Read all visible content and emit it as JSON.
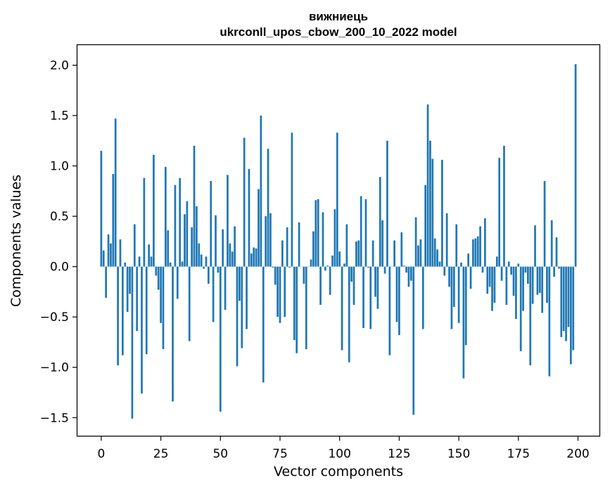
{
  "chart_data": {
    "type": "bar",
    "title": "вижниець",
    "subtitle": "ukrconll_upos_cbow_200_10_2022 model",
    "xlabel": "Vector components",
    "ylabel": "Components values",
    "xlim": [
      -10,
      209
    ],
    "ylim": [
      -1.68,
      2.2
    ],
    "xticks": [
      0,
      25,
      50,
      75,
      100,
      125,
      150,
      175,
      200
    ],
    "yticks": [
      -1.5,
      -1.0,
      -0.5,
      0.0,
      0.5,
      1.0,
      1.5,
      2.0
    ],
    "ytick_labels": [
      "−1.5",
      "−1.0",
      "−0.5",
      "0.0",
      "0.5",
      "1.0",
      "1.5",
      "2.0"
    ],
    "grid": false,
    "bar_color": "#1f77b4",
    "series": [
      {
        "values": [
          1.15,
          0.16,
          -0.31,
          0.32,
          0.23,
          0.92,
          1.47,
          -0.98,
          0.27,
          -0.88,
          0.04,
          -0.45,
          -0.27,
          -1.51,
          0.42,
          -0.64,
          0.1,
          -1.26,
          0.88,
          -0.87,
          0.22,
          0.1,
          1.11,
          -0.09,
          -0.23,
          -0.56,
          -0.82,
          0.99,
          0.36,
          0.04,
          -1.34,
          0.81,
          -0.32,
          0.88,
          0.05,
          0.52,
          0.65,
          -0.74,
          0.39,
          1.2,
          0.6,
          0.23,
          0.12,
          -0.02,
          0.1,
          -0.17,
          0.85,
          -0.55,
          0.51,
          -0.06,
          -1.44,
          0.37,
          -0.43,
          0.91,
          0.23,
          0.15,
          0.4,
          -0.99,
          -0.34,
          -0.81,
          1.28,
          -0.62,
          0.97,
          0.13,
          0.19,
          0.18,
          0.77,
          1.5,
          -1.15,
          0.5,
          1.17,
          0.53,
          -0.01,
          -0.18,
          -0.5,
          -0.56,
          0.26,
          -0.5,
          0.39,
          -0.01,
          1.33,
          -0.73,
          -0.86,
          0.44,
          0.0,
          -0.17,
          -0.82,
          0.0,
          0.07,
          0.35,
          0.66,
          0.67,
          -0.38,
          0.54,
          -0.04,
          0.01,
          -0.28,
          0.11,
          0.57,
          1.33,
          0.15,
          -0.83,
          0.03,
          0.42,
          -0.95,
          -0.15,
          -0.38,
          0.25,
          0.26,
          0.7,
          -0.61,
          0.67,
          -0.01,
          -0.62,
          0.26,
          -0.3,
          -0.42,
          0.89,
          0.46,
          -0.07,
          1.25,
          -0.88,
          0.0,
          0.26,
          -0.55,
          -0.68,
          0.34,
          0.01,
          -0.06,
          -0.2,
          -0.14,
          -1.47,
          0.49,
          0.21,
          0.27,
          -0.62,
          0.81,
          1.61,
          1.25,
          1.07,
          0.28,
          0.17,
          0.05,
          1.06,
          -0.09,
          0.53,
          -0.2,
          -0.62,
          -0.4,
          0.42,
          -0.56,
          0.04,
          -1.11,
          -0.78,
          0.13,
          -0.22,
          0.27,
          0.28,
          0.3,
          0.4,
          -0.06,
          0.48,
          -0.27,
          -0.2,
          -0.44,
          -0.36,
          0.1,
          1.08,
          -0.14,
          1.2,
          -0.38,
          0.05,
          -0.08,
          -0.29,
          -0.52,
          0.03,
          -0.84,
          -0.44,
          -0.06,
          -0.17,
          -0.98,
          -0.37,
          0.41,
          -0.28,
          -0.26,
          -0.46,
          0.85,
          -0.36,
          -1.09,
          0.46,
          -0.1,
          0.29,
          -0.02,
          -0.7,
          -0.64,
          -0.74,
          -0.6,
          -0.97,
          -0.83,
          2.01
        ]
      }
    ]
  }
}
